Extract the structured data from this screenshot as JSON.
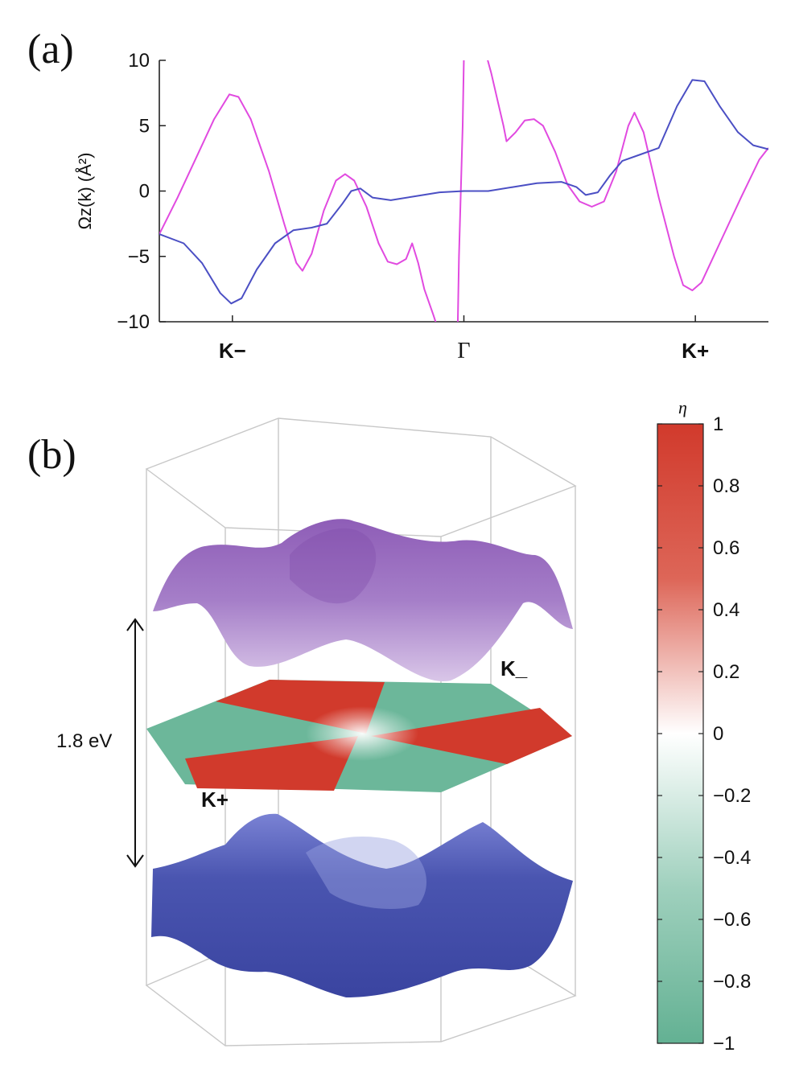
{
  "panel_labels": {
    "a": "(a)",
    "b": "(b)"
  },
  "chart_data": [
    {
      "type": "line",
      "panel": "(a)",
      "ylabel": "Ωz(k) (Å²)",
      "ylim": [
        -10,
        10
      ],
      "yticks": [
        "10",
        "5",
        "0",
        "−5",
        "−10"
      ],
      "ytick_values": [
        10,
        5,
        0,
        -5,
        -10
      ],
      "xticks": [
        {
          "label": "K−",
          "x": 0.12,
          "bold": true
        },
        {
          "label": "Γ",
          "x": 0.5,
          "bold": false
        },
        {
          "label": "K+",
          "x": 0.88,
          "bold": true
        }
      ],
      "xlim": [
        0,
        1
      ],
      "grid": false,
      "colors": {
        "magenta": "#e14ae0",
        "blue": "#4b4fc4"
      },
      "series": [
        {
          "color": "#e14ae0",
          "segments": [
            [
              [
                0.0,
                -3.3
              ],
              [
                0.03,
                -0.5
              ],
              [
                0.06,
                2.5
              ],
              [
                0.09,
                5.5
              ],
              [
                0.115,
                7.4
              ],
              [
                0.13,
                7.2
              ],
              [
                0.15,
                5.5
              ],
              [
                0.18,
                1.5
              ],
              [
                0.205,
                -2.5
              ],
              [
                0.225,
                -5.5
              ],
              [
                0.235,
                -6.1
              ],
              [
                0.25,
                -4.8
              ],
              [
                0.27,
                -1.5
              ],
              [
                0.29,
                0.8
              ],
              [
                0.305,
                1.3
              ],
              [
                0.32,
                0.8
              ],
              [
                0.34,
                -1.2
              ],
              [
                0.36,
                -4.0
              ],
              [
                0.375,
                -5.4
              ],
              [
                0.39,
                -5.6
              ],
              [
                0.405,
                -5.2
              ],
              [
                0.415,
                -4.0
              ],
              [
                0.425,
                -5.5
              ],
              [
                0.435,
                -7.5
              ],
              [
                0.45,
                -9.5
              ],
              [
                0.455,
                -10.2
              ]
            ],
            [
              [
                0.49,
                -10.2
              ],
              [
                0.492,
                -5
              ],
              [
                0.495,
                0
              ],
              [
                0.498,
                5
              ],
              [
                0.5,
                10.2
              ]
            ],
            [
              [
                0.538,
                10.2
              ],
              [
                0.545,
                9.0
              ],
              [
                0.555,
                7.0
              ],
              [
                0.565,
                5.0
              ],
              [
                0.57,
                3.8
              ],
              [
                0.585,
                4.5
              ],
              [
                0.6,
                5.4
              ],
              [
                0.615,
                5.5
              ],
              [
                0.63,
                5.0
              ],
              [
                0.65,
                3.0
              ],
              [
                0.67,
                0.5
              ],
              [
                0.69,
                -0.8
              ],
              [
                0.71,
                -1.2
              ],
              [
                0.73,
                -0.8
              ],
              [
                0.75,
                1.5
              ],
              [
                0.77,
                5.0
              ],
              [
                0.78,
                6.0
              ],
              [
                0.795,
                4.5
              ],
              [
                0.82,
                -0.5
              ],
              [
                0.845,
                -5.0
              ],
              [
                0.86,
                -7.2
              ],
              [
                0.875,
                -7.6
              ],
              [
                0.89,
                -7.0
              ],
              [
                0.92,
                -4.0
              ],
              [
                0.955,
                -0.5
              ],
              [
                0.985,
                2.4
              ],
              [
                1.0,
                3.3
              ]
            ]
          ]
        },
        {
          "color": "#4b4fc4",
          "segments": [
            [
              [
                0.0,
                -3.3
              ],
              [
                0.04,
                -4.0
              ],
              [
                0.07,
                -5.5
              ],
              [
                0.1,
                -7.8
              ],
              [
                0.118,
                -8.6
              ],
              [
                0.135,
                -8.2
              ],
              [
                0.16,
                -6.0
              ],
              [
                0.19,
                -4.0
              ],
              [
                0.22,
                -3.0
              ],
              [
                0.25,
                -2.8
              ],
              [
                0.275,
                -2.5
              ],
              [
                0.3,
                -1.0
              ],
              [
                0.315,
                0.0
              ],
              [
                0.33,
                0.2
              ],
              [
                0.35,
                -0.5
              ],
              [
                0.38,
                -0.7
              ],
              [
                0.42,
                -0.4
              ],
              [
                0.46,
                -0.1
              ],
              [
                0.5,
                0.0
              ],
              [
                0.54,
                0.0
              ],
              [
                0.58,
                0.3
              ],
              [
                0.62,
                0.6
              ],
              [
                0.66,
                0.7
              ],
              [
                0.685,
                0.3
              ],
              [
                0.7,
                -0.3
              ],
              [
                0.72,
                -0.1
              ],
              [
                0.74,
                1.2
              ],
              [
                0.76,
                2.3
              ],
              [
                0.79,
                2.8
              ],
              [
                0.82,
                3.3
              ],
              [
                0.85,
                6.5
              ],
              [
                0.875,
                8.5
              ],
              [
                0.895,
                8.4
              ],
              [
                0.92,
                6.5
              ],
              [
                0.95,
                4.5
              ],
              [
                0.975,
                3.5
              ],
              [
                1.0,
                3.2
              ]
            ]
          ]
        }
      ]
    },
    {
      "type": "heatmap",
      "panel": "(b)",
      "colorbar_label": "η",
      "colorbar_ticks": [
        "1",
        "0.8",
        "0.6",
        "0.4",
        "0.2",
        "0",
        "−0.2",
        "−0.4",
        "−0.6",
        "−0.8",
        "−1"
      ],
      "colorbar_tick_values": [
        1,
        0.8,
        0.6,
        0.4,
        0.2,
        0,
        -0.2,
        -0.4,
        -0.6,
        -0.8,
        -1
      ],
      "vlim": [
        -1,
        1
      ],
      "colors": {
        "positive": "#d13a2c",
        "zero": "#ffffff",
        "negative": "#6cb79a",
        "upper_band": "#a877c4",
        "lower_band": "#4a55b0"
      },
      "annotations": {
        "gap": "1.8 eV",
        "k_minus": "K_",
        "k_plus": "K+"
      }
    }
  ]
}
